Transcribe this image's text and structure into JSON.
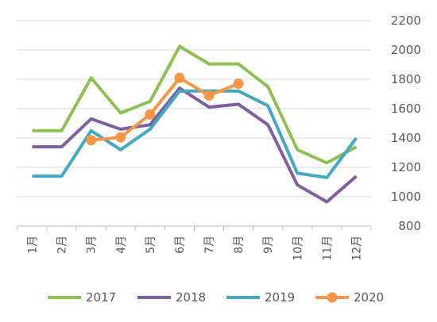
{
  "chart_data": {
    "type": "line",
    "categories": [
      "1月",
      "2月",
      "3月",
      "4月",
      "5月",
      "6月",
      "7月",
      "8月",
      "9月",
      "10月",
      "11月",
      "12月"
    ],
    "y_axis": {
      "position": "right",
      "ylim": [
        800,
        2200
      ],
      "ticks": [
        800,
        1000,
        1200,
        1400,
        1600,
        1800,
        2000,
        2200
      ],
      "grid": true
    },
    "legend": {
      "placement": "bottom"
    },
    "series": [
      {
        "name": "2017",
        "color": "#8DC152",
        "marker": "none",
        "values": [
          1450,
          1450,
          1810,
          1570,
          1650,
          2025,
          1905,
          1905,
          1750,
          1320,
          1230,
          1340
        ]
      },
      {
        "name": "2018",
        "color": "#7F5EA2",
        "marker": "none",
        "values": [
          1340,
          1340,
          1530,
          1460,
          1490,
          1740,
          1610,
          1630,
          1490,
          1080,
          965,
          1140
        ]
      },
      {
        "name": "2019",
        "color": "#41A9C4",
        "marker": "none",
        "values": [
          1140,
          1140,
          1450,
          1320,
          1460,
          1720,
          1720,
          1720,
          1620,
          1160,
          1130,
          1400
        ]
      },
      {
        "name": "2020",
        "color": "#F79646",
        "marker": "circle",
        "values": [
          null,
          null,
          1385,
          1405,
          1560,
          1810,
          1690,
          1770,
          null,
          null,
          null,
          null
        ]
      }
    ]
  }
}
